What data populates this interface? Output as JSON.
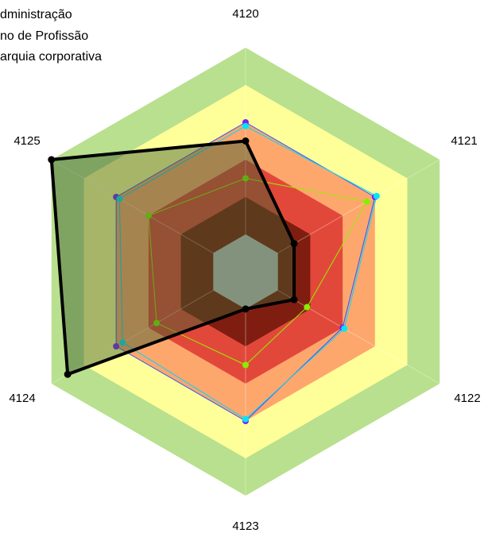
{
  "chart_data": {
    "type": "radar",
    "axes": [
      "4120",
      "4121",
      "4122",
      "4123",
      "4124",
      "4125"
    ],
    "range": [
      0,
      10
    ],
    "bands": [
      {
        "from": 0,
        "to": 2,
        "color": "#c0c0c0"
      },
      {
        "from": 2,
        "to": 4,
        "color": "#7f1e10"
      },
      {
        "from": 4,
        "to": 6,
        "color": "#e2483a"
      },
      {
        "from": 6,
        "to": 8,
        "color": "#fda76d"
      },
      {
        "from": 8,
        "to": 10,
        "color": "#ffff99"
      },
      {
        "from": 10,
        "to": 12,
        "color": "#b8e08e"
      }
    ],
    "legend_visible_text": [
      "dministração",
      "no de Profissão",
      "arquia corporativa"
    ],
    "series": [
      {
        "label_index": 0,
        "color": "#3050ff",
        "marker": "#7a1fff",
        "line_width": 1,
        "values": [
          8.0,
          8.0,
          6.0,
          8.0,
          8.0,
          8.0
        ]
      },
      {
        "label_index": 1,
        "color": "#00d8ff",
        "marker": "#00e5ff",
        "line_width": 1,
        "values": [
          7.8,
          8.1,
          6.1,
          7.9,
          7.6,
          7.8
        ]
      },
      {
        "label_index": 2,
        "color": "#99ee00",
        "marker": "#88ee00",
        "line_width": 1,
        "values": [
          5.0,
          7.5,
          3.8,
          5.0,
          5.5,
          6.0
        ]
      },
      {
        "label_index": 3,
        "color": "#000000",
        "marker": "#000000",
        "line_width": 4,
        "fill": "#3a5a2c",
        "fill_opacity": 0.45,
        "values": [
          7.0,
          3.0,
          3.0,
          2.0,
          11.0,
          12.0
        ]
      }
    ]
  }
}
